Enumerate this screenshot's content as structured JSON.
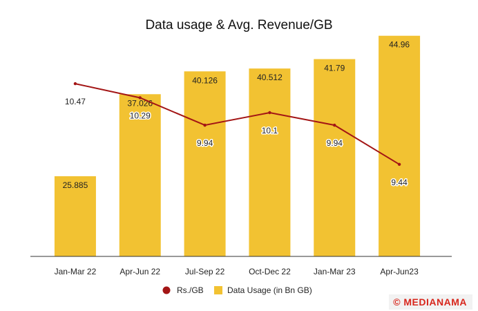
{
  "chart_data": {
    "type": "bar",
    "title": "Data usage & Avg. Revenue/GB",
    "categories": [
      "Jan-Mar 22",
      "Apr-Jun 22",
      "Jul-Sep 22",
      "Oct-Dec 22",
      "Jan-Mar 23",
      "Apr-Jun23"
    ],
    "series": [
      {
        "name": "Data Usage (in Bn GB)",
        "type": "bar",
        "axis": "left",
        "values": [
          25.885,
          37.026,
          40.126,
          40.512,
          41.79,
          44.96
        ],
        "labels": [
          "25.885",
          "37.026",
          "40.126",
          "40.512",
          "41.79",
          "44.96"
        ],
        "color": "#F2C232"
      },
      {
        "name": "Rs./GB",
        "type": "line",
        "axis": "right",
        "values": [
          10.47,
          10.29,
          9.94,
          10.1,
          9.94,
          9.44
        ],
        "labels": [
          "10.47",
          "10.29",
          "9.94",
          "10.1",
          "9.94",
          "9.44"
        ],
        "color": "#A31515"
      }
    ],
    "y_left_range": [
      15,
      47
    ],
    "y_right_range": [
      9.2,
      10.7
    ],
    "legend_position": "bottom-center",
    "grid": false
  },
  "watermark": "© MEDIANAMA",
  "colors": {
    "bar": "#F2C232",
    "line": "#A31515",
    "axis": "#333333"
  }
}
